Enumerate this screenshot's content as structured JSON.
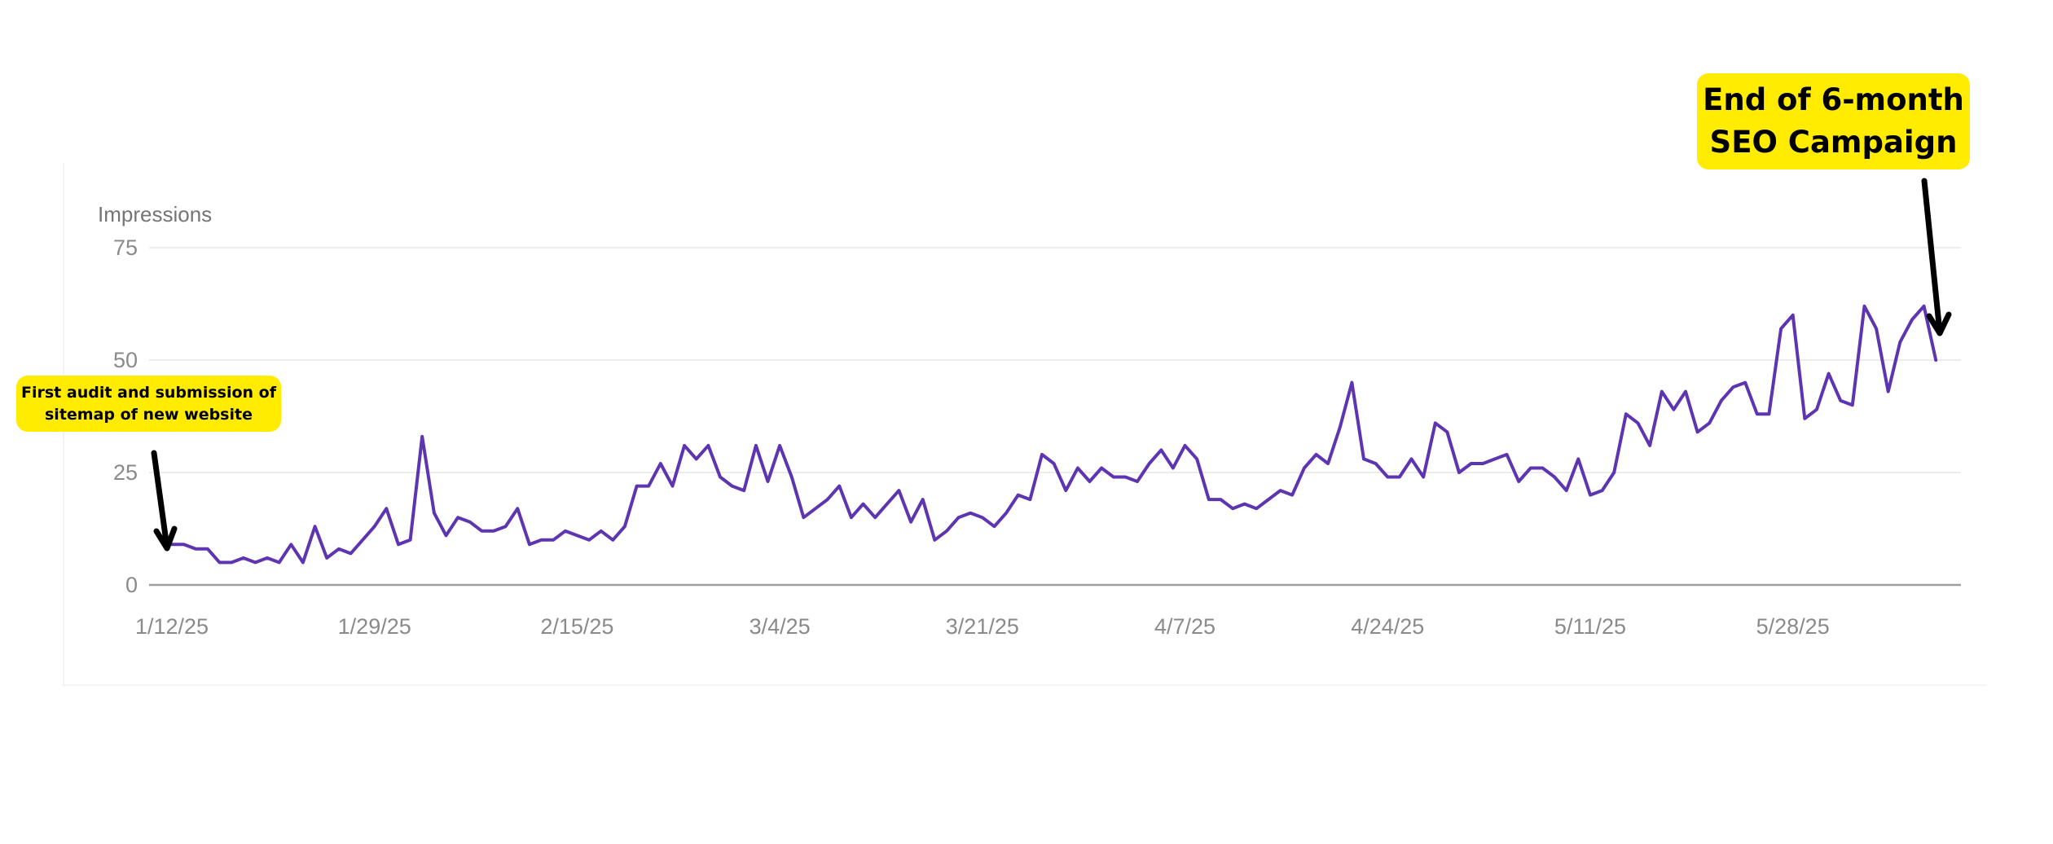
{
  "annotations": {
    "first": "First audit and submission of sitemap of new website",
    "end": "End of 6-month SEO Campaign"
  },
  "colors": {
    "line": "#5e35b1",
    "annotation_bg": "#ffec00",
    "arrow": "#000000",
    "grid": "#ececec"
  },
  "chart_data": {
    "type": "line",
    "ylabel": "Impressions",
    "xlabel": "",
    "ylim": [
      0,
      75
    ],
    "yticks": [
      0,
      25,
      50,
      75
    ],
    "xticks": [
      "1/12/25",
      "1/29/25",
      "2/15/25",
      "3/4/25",
      "3/21/25",
      "4/7/25",
      "4/24/25",
      "5/11/25",
      "5/28/25"
    ],
    "grid": true,
    "legend": "none",
    "x": [
      "1/12/25",
      "1/13/25",
      "1/14/25",
      "1/15/25",
      "1/16/25",
      "1/17/25",
      "1/18/25",
      "1/19/25",
      "1/20/25",
      "1/21/25",
      "1/22/25",
      "1/23/25",
      "1/24/25",
      "1/25/25",
      "1/26/25",
      "1/27/25",
      "1/28/25",
      "1/29/25",
      "1/30/25",
      "1/31/25",
      "2/1/25",
      "2/2/25",
      "2/3/25",
      "2/4/25",
      "2/5/25",
      "2/6/25",
      "2/7/25",
      "2/8/25",
      "2/9/25",
      "2/10/25",
      "2/11/25",
      "2/12/25",
      "2/13/25",
      "2/14/25",
      "2/15/25",
      "2/16/25",
      "2/17/25",
      "2/18/25",
      "2/19/25",
      "2/20/25",
      "2/21/25",
      "2/22/25",
      "2/23/25",
      "2/24/25",
      "2/25/25",
      "2/26/25",
      "2/27/25",
      "2/28/25",
      "3/1/25",
      "3/2/25",
      "3/3/25",
      "3/4/25",
      "3/5/25",
      "3/6/25",
      "3/7/25",
      "3/8/25",
      "3/9/25",
      "3/10/25",
      "3/11/25",
      "3/12/25",
      "3/13/25",
      "3/14/25",
      "3/15/25",
      "3/16/25",
      "3/17/25",
      "3/18/25",
      "3/19/25",
      "3/20/25",
      "3/21/25",
      "3/22/25",
      "3/23/25",
      "3/24/25",
      "3/25/25",
      "3/26/25",
      "3/27/25",
      "3/28/25",
      "3/29/25",
      "3/30/25",
      "3/31/25",
      "4/1/25",
      "4/2/25",
      "4/3/25",
      "4/4/25",
      "4/5/25",
      "4/6/25",
      "4/7/25",
      "4/8/25",
      "4/9/25",
      "4/10/25",
      "4/11/25",
      "4/12/25",
      "4/13/25",
      "4/14/25",
      "4/15/25",
      "4/16/25",
      "4/17/25",
      "4/18/25",
      "4/19/25",
      "4/20/25",
      "4/21/25",
      "4/22/25",
      "4/23/25",
      "4/24/25",
      "4/25/25",
      "4/26/25",
      "4/27/25",
      "4/28/25",
      "4/29/25",
      "4/30/25",
      "5/1/25",
      "5/2/25",
      "5/3/25",
      "5/4/25",
      "5/5/25",
      "5/6/25",
      "5/7/25",
      "5/8/25",
      "5/9/25",
      "5/10/25",
      "5/11/25",
      "5/12/25",
      "5/13/25",
      "5/14/25",
      "5/15/25",
      "5/16/25",
      "5/17/25",
      "5/18/25",
      "5/19/25",
      "5/20/25",
      "5/21/25",
      "5/22/25",
      "5/23/25",
      "5/24/25",
      "5/25/25",
      "5/26/25",
      "5/27/25",
      "5/28/25",
      "5/29/25",
      "5/30/25",
      "5/31/25",
      "6/1/25",
      "6/2/25",
      "6/3/25",
      "6/4/25",
      "6/5/25",
      "6/6/25",
      "6/7/25",
      "6/8/25",
      "6/9/25"
    ],
    "series": [
      {
        "values": [
          9,
          9,
          8,
          8,
          5,
          5,
          6,
          5,
          6,
          5,
          9,
          5,
          13,
          6,
          8,
          7,
          10,
          13,
          17,
          9,
          10,
          33,
          16,
          11,
          15,
          14,
          12,
          12,
          13,
          17,
          9,
          10,
          10,
          12,
          11,
          10,
          12,
          10,
          13,
          22,
          22,
          27,
          22,
          31,
          28,
          31,
          24,
          22,
          21,
          31,
          23,
          31,
          24,
          15,
          17,
          19,
          22,
          15,
          18,
          15,
          18,
          21,
          14,
          19,
          10,
          12,
          15,
          16,
          15,
          13,
          16,
          20,
          19,
          29,
          27,
          21,
          26,
          23,
          26,
          24,
          24,
          23,
          27,
          30,
          26,
          31,
          28,
          19,
          19,
          17,
          18,
          17,
          19,
          21,
          20,
          26,
          29,
          27,
          35,
          45,
          28,
          27,
          24,
          24,
          28,
          24,
          36,
          34,
          25,
          27,
          27,
          28,
          29,
          23,
          26,
          26,
          24,
          21,
          28,
          20,
          21,
          25,
          38,
          36,
          31,
          43,
          39,
          43,
          34,
          36,
          41,
          44,
          45,
          38,
          38,
          57,
          60,
          37,
          39,
          47,
          41,
          40,
          62,
          57,
          43,
          54,
          59,
          62,
          50
        ]
      }
    ]
  }
}
